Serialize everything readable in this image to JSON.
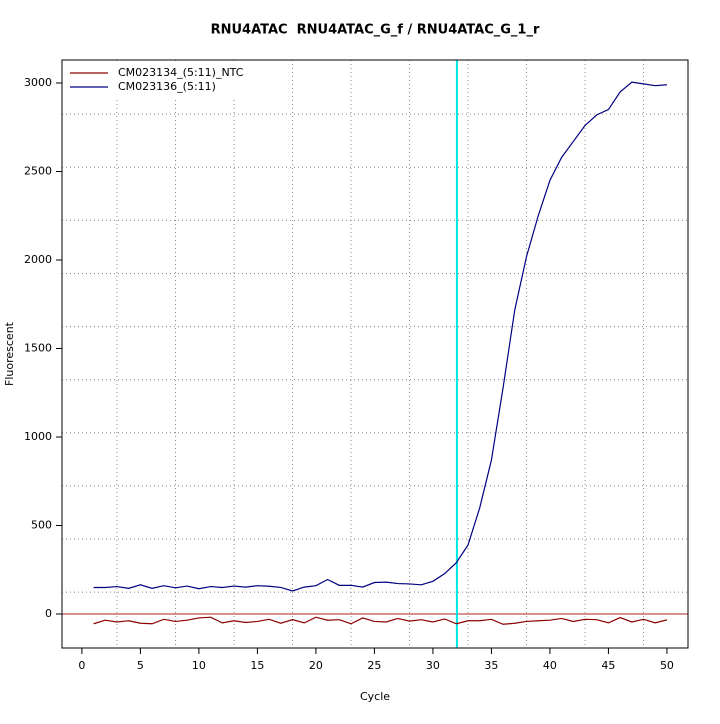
{
  "chart_data": {
    "type": "line",
    "title": "RNU4ATAC  RNU4ATAC_G_f / RNU4ATAC_G_1_r",
    "x_label": "Cycle",
    "y_label": "Fluorescent",
    "x": [
      1,
      2,
      3,
      4,
      5,
      6,
      7,
      8,
      9,
      10,
      11,
      12,
      13,
      14,
      15,
      16,
      17,
      18,
      19,
      20,
      21,
      22,
      23,
      24,
      25,
      26,
      27,
      28,
      29,
      30,
      31,
      32,
      33,
      34,
      35,
      36,
      37,
      38,
      39,
      40,
      41,
      42,
      43,
      44,
      45,
      46,
      47,
      48,
      49,
      50
    ],
    "series": [
      {
        "name": "CM023134_(5:11)_NTC",
        "color": "#8b0000",
        "values": [
          -55,
          -35,
          -45,
          -38,
          -52,
          -55,
          -30,
          -42,
          -35,
          -22,
          -18,
          -50,
          -38,
          -48,
          -42,
          -30,
          -52,
          -32,
          -50,
          -18,
          -35,
          -32,
          -55,
          -22,
          -42,
          -45,
          -25,
          -40,
          -32,
          -45,
          -28,
          -55,
          -38,
          -38,
          -30,
          -58,
          -52,
          -42,
          -38,
          -35,
          -25,
          -42,
          -30,
          -32,
          -50,
          -20,
          -45,
          -30,
          -50,
          -33
        ]
      },
      {
        "name": "CM023136_(5:11)",
        "color": "#000080",
        "values": [
          150,
          150,
          155,
          145,
          165,
          145,
          160,
          148,
          158,
          143,
          155,
          150,
          158,
          152,
          160,
          157,
          150,
          130,
          152,
          160,
          195,
          162,
          162,
          152,
          178,
          180,
          172,
          170,
          165,
          185,
          228,
          290,
          390,
          600,
          870,
          1280,
          1720,
          2020,
          2250,
          2450,
          2580,
          2670,
          2760,
          2820,
          2850,
          2950,
          3005,
          2995,
          2985,
          2990
        ]
      }
    ],
    "xlim": [
      -1.7,
      51.8
    ],
    "ylim": [
      -192,
      3130
    ],
    "xticks": [
      0,
      5,
      10,
      15,
      20,
      25,
      30,
      35,
      40,
      45,
      50
    ],
    "yticks": [
      0,
      500,
      1000,
      1500,
      2000,
      2500,
      3000
    ],
    "xgrid": [
      3,
      8,
      13,
      18,
      23,
      28,
      33,
      38,
      43,
      48
    ],
    "ygrid": [
      124,
      424,
      724,
      1024,
      1324,
      1624,
      1924,
      2224,
      2524,
      2824
    ],
    "threshold_cycle": 32.05,
    "threshold_color": "#00e5e5",
    "baseline": 0,
    "baseline_color": "#b22222",
    "legend": "top-left"
  }
}
